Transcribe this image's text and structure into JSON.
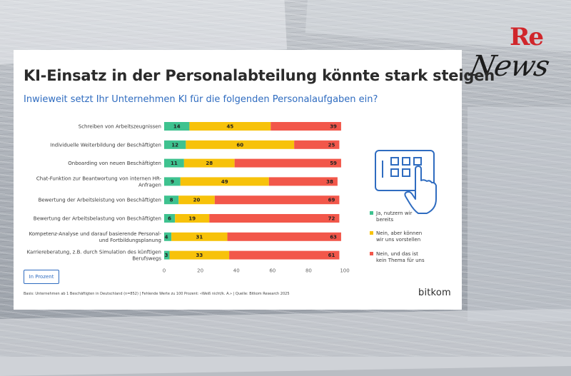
{
  "logo": {
    "re": "Re",
    "news": "News"
  },
  "card": {
    "title": "KI-Einsatz in der Personalabteilung könnte stark steigen",
    "subtitle": "Inwieweit setzt Ihr Unternehmen KI für die folgenden Personalaufgaben ein?",
    "unit_label": "In Prozent",
    "basis": "Basis: Unternehmen ab 1 Beschäftigten in Deutschland (n=852) | Fehlende Werte zu 100 Prozent: «Weiß nicht/k. A.» | Quelle: Bitkom Research 2025",
    "brand": "bitkom"
  },
  "colors": {
    "green": "#3ec28f",
    "yellow": "#f7c20a",
    "red": "#f2574a",
    "blue": "#2f6cc0"
  },
  "chart_data": {
    "type": "bar",
    "orientation": "horizontal",
    "stacked": true,
    "title": "KI-Einsatz in der Personalabteilung könnte stark steigen",
    "categories": [
      [
        "Schreiben von Arbeitszeugnissen"
      ],
      [
        "Individuelle Weiterbildung der Beschäftigten"
      ],
      [
        "Onboarding von neuen Beschäftigten"
      ],
      [
        "Chat-Funktion zur Beantwortung von internen HR-",
        "Anfragen"
      ],
      [
        "Bewertung der Arbeitsleistung von Beschäftigten"
      ],
      [
        "Bewertung der Arbeitsbelastung von Beschäftigten"
      ],
      [
        "Kompetenz-Analyse und darauf basierende Personal-",
        "und Fortbildungsplanung"
      ],
      [
        "Karriereberatung, z.B. durch Simulation des künftigen",
        "Berufswegs"
      ]
    ],
    "series": [
      {
        "name": "Ja, nutzern wir bereits",
        "legend_lines": [
          "Ja, nutzern wir",
          "bereits"
        ],
        "color": "#3ec28f",
        "values": [
          14,
          12,
          11,
          9,
          8,
          6,
          4,
          3
        ]
      },
      {
        "name": "Nein, aber können wir uns vorstellen",
        "legend_lines": [
          "Nein, aber können",
          "wir uns vorstellen"
        ],
        "color": "#f7c20a",
        "values": [
          45,
          60,
          28,
          49,
          20,
          19,
          31,
          33
        ]
      },
      {
        "name": "Nein, und das ist kein Thema für uns",
        "legend_lines": [
          "Nein, und das ist",
          "kein Thema für uns"
        ],
        "color": "#f2574a",
        "values": [
          39,
          25,
          59,
          38,
          69,
          72,
          63,
          61
        ]
      }
    ],
    "xlim": [
      0,
      100
    ],
    "xticks": [
      "0",
      "20",
      "40",
      "60",
      "80",
      "100"
    ],
    "legend": "right"
  }
}
